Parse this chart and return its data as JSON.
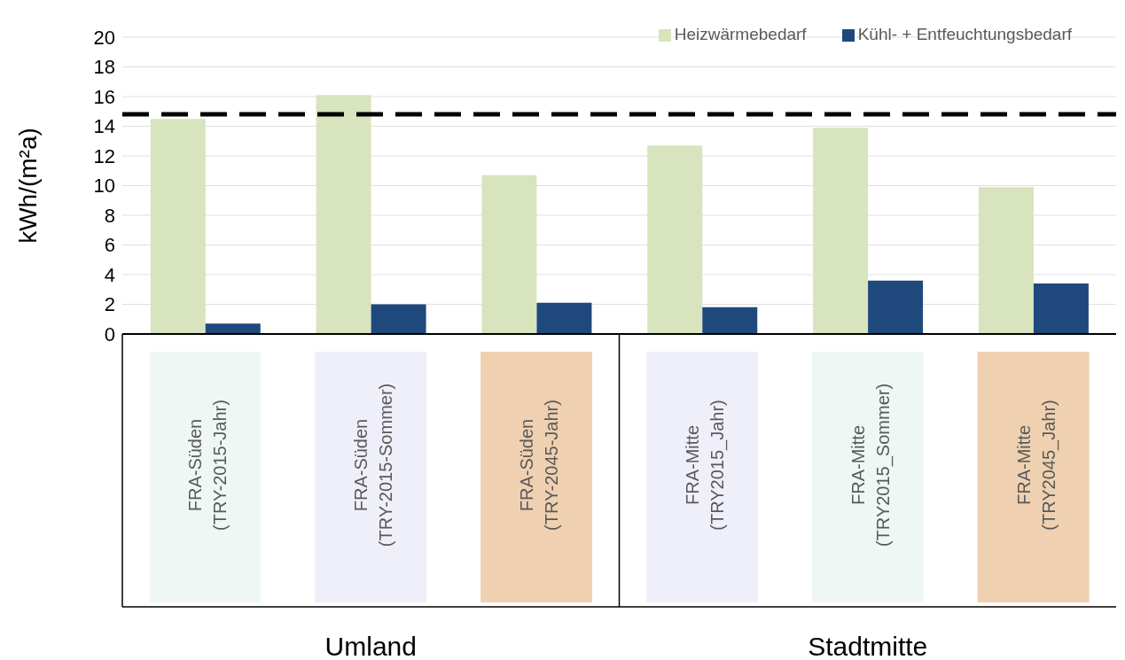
{
  "chart_data": {
    "type": "bar",
    "ylabel": "kWh/(m²a)",
    "categories": [
      "FRA-Süden (TRY-2015-Jahr)",
      "FRA-Süden (TRY-2015-Sommer)",
      "FRA-Süden (TRY-2045-Jahr)",
      "FRA-Mitte (TRY2015_Jahr)",
      "FRA-Mitte (TRY2015_Sommer)",
      "FRA-Mitte (TRY2045_Jahr)"
    ],
    "series": [
      {
        "name": "Heizwärmebedarf",
        "color": "#d7e4bd",
        "values": [
          14.5,
          16.1,
          10.7,
          12.7,
          13.9,
          9.9
        ]
      },
      {
        "name": "Kühl- + Entfeuchtungsbedarf",
        "color": "#1f497d",
        "values": [
          0.7,
          2.0,
          2.1,
          1.8,
          3.6,
          3.4
        ]
      }
    ],
    "ylim": [
      0,
      20
    ],
    "yticks": [
      0,
      2,
      4,
      6,
      8,
      10,
      12,
      14,
      16,
      18,
      20
    ],
    "ref_lines": [
      {
        "axis": "y",
        "value": 14.8,
        "color": "#000000",
        "line_style": "dashed"
      }
    ],
    "annotations": [
      "Umland",
      "Stadtmitte"
    ],
    "grid": "y",
    "legend": "top right"
  }
}
